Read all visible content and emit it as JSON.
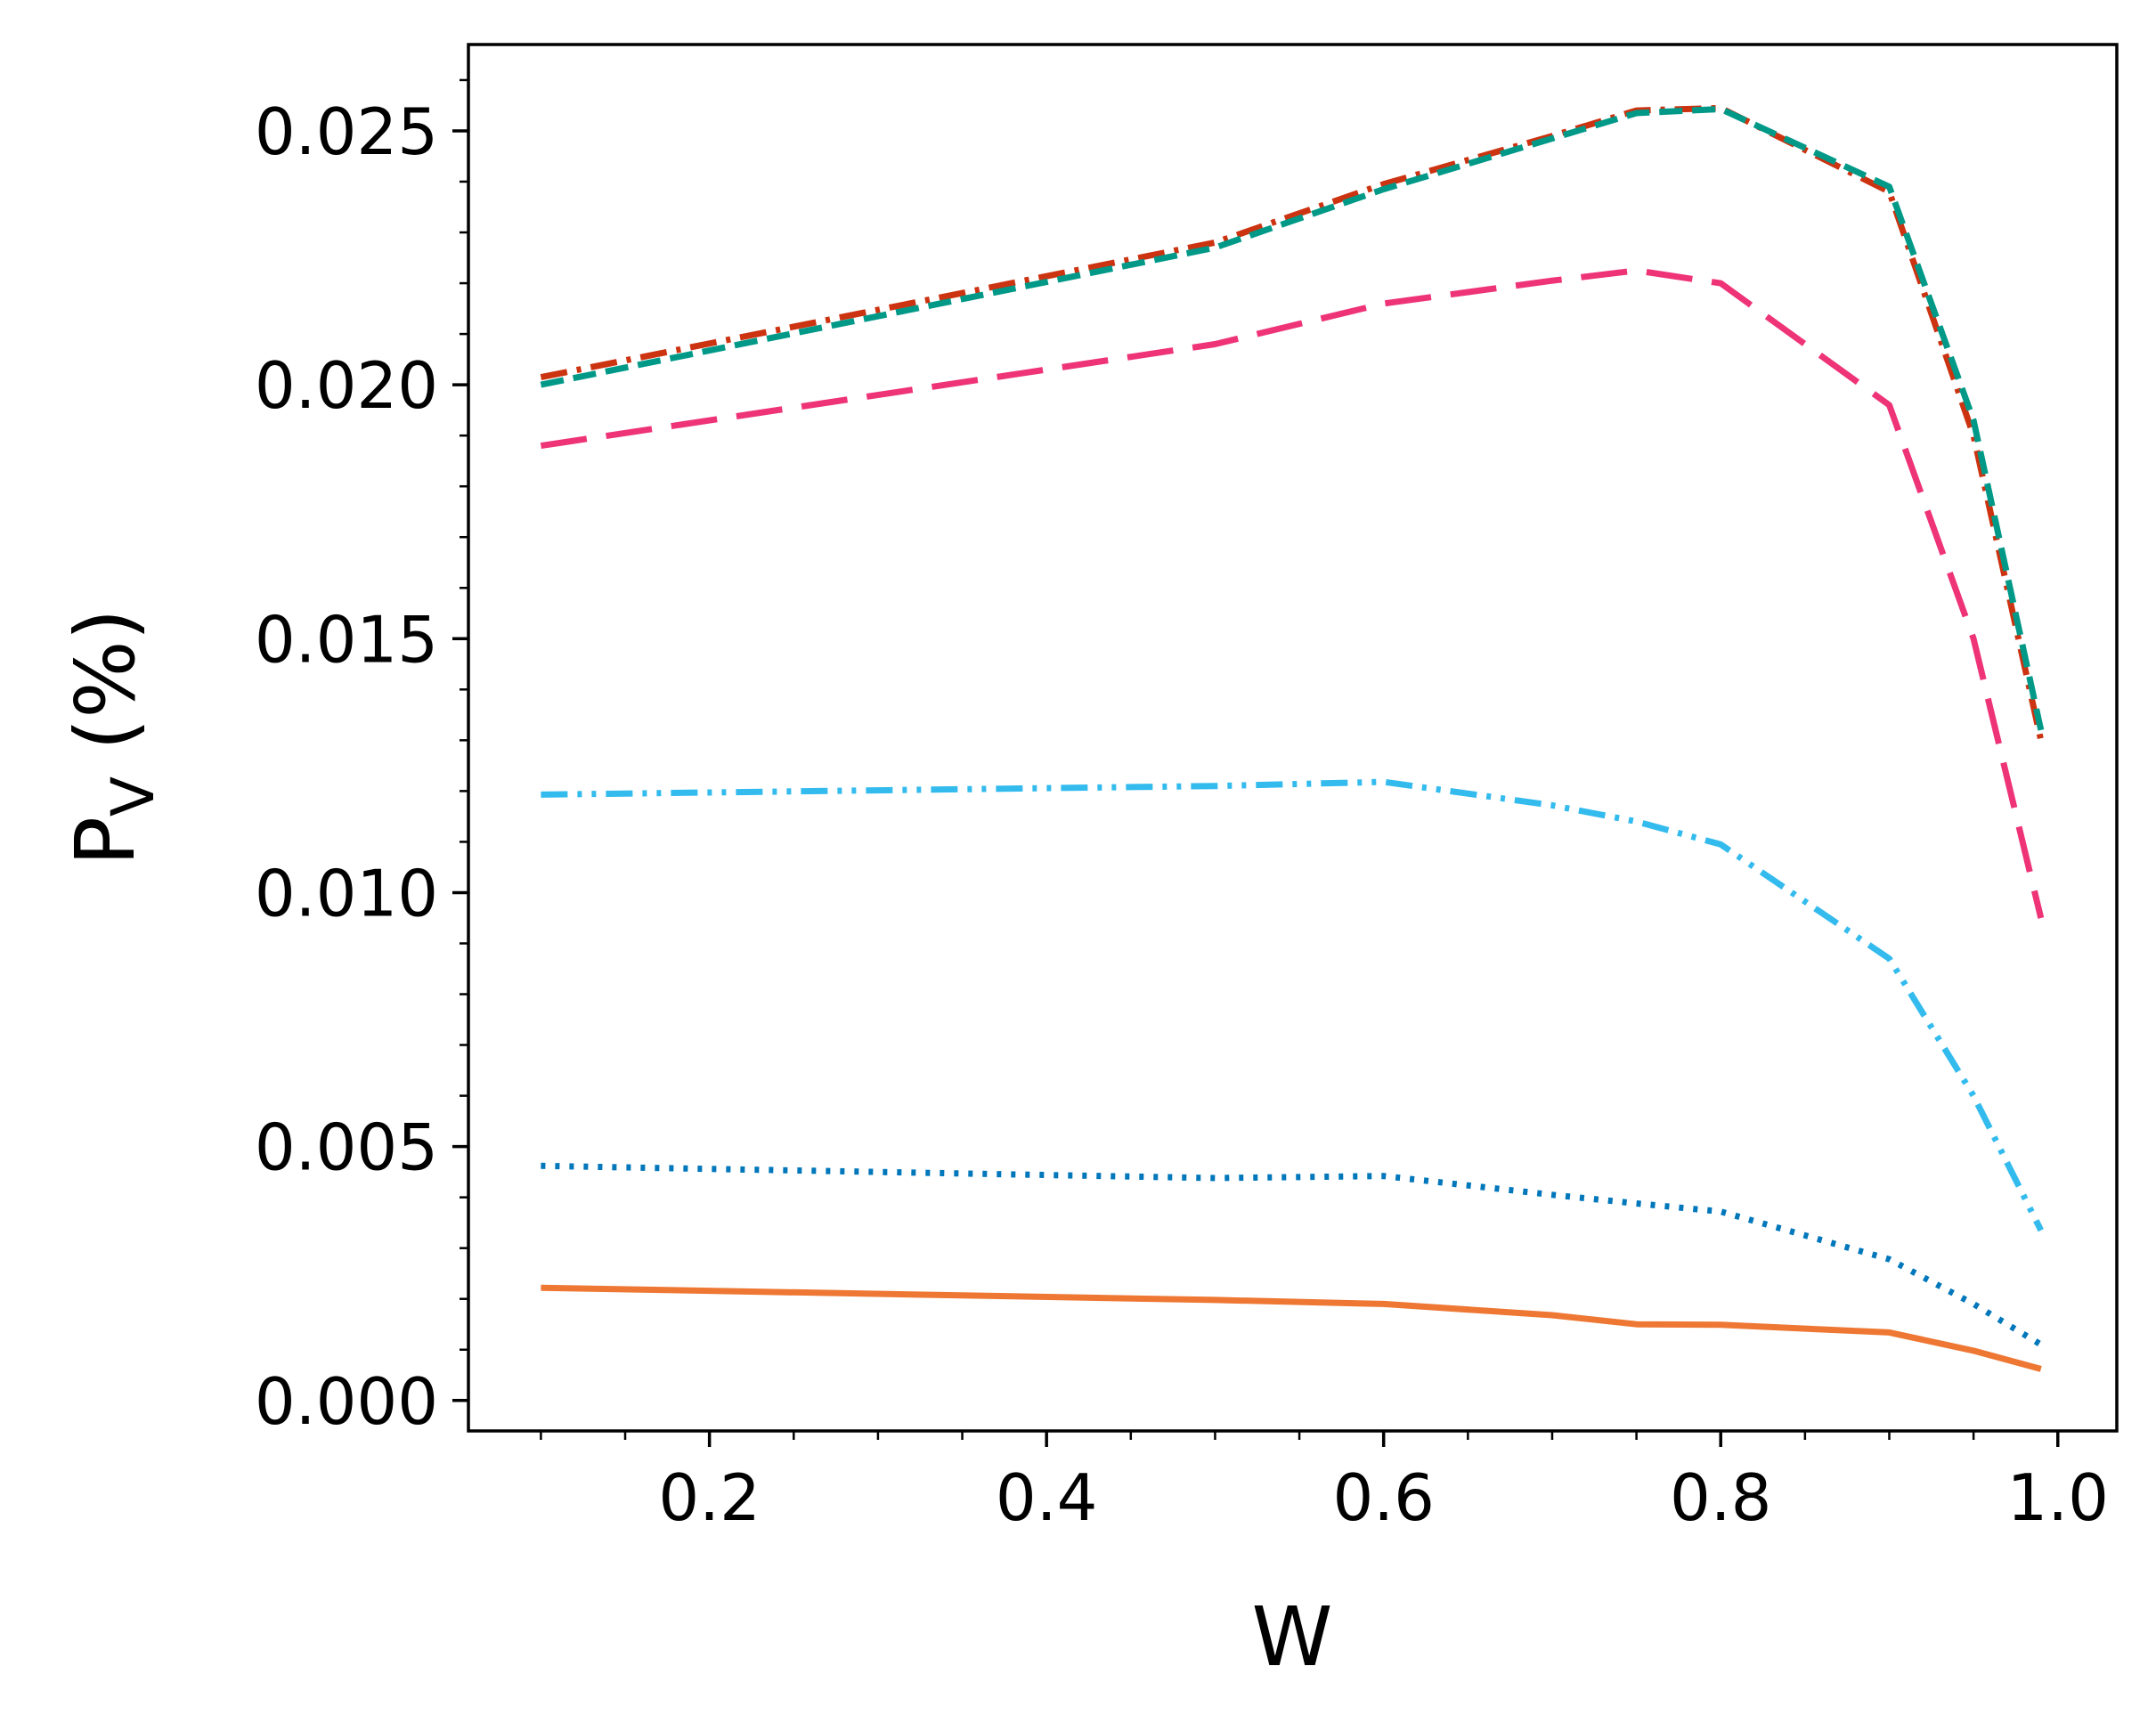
{
  "chart_data": {
    "type": "line",
    "title": "",
    "xlabel": "W",
    "ylabel": {
      "main": "P",
      "subscript": "V",
      "suffix": " (%)"
    },
    "xlim": [
      0.057,
      1.035
    ],
    "ylim": [
      -0.0006,
      0.0267
    ],
    "x_ticks": [
      0.2,
      0.4,
      0.6,
      0.8,
      1.0
    ],
    "x_tick_labels": [
      "0.2",
      "0.4",
      "0.6",
      "0.8",
      "1.0"
    ],
    "x_minor_ticks": [
      0.1,
      0.15,
      0.25,
      0.3,
      0.35,
      0.45,
      0.5,
      0.55,
      0.65,
      0.7,
      0.75,
      0.85,
      0.9,
      0.95
    ],
    "y_ticks": [
      0.0,
      0.005,
      0.01,
      0.015,
      0.02,
      0.025
    ],
    "y_tick_labels": [
      "0.000",
      "0.005",
      "0.010",
      "0.015",
      "0.020",
      "0.025"
    ],
    "y_minor_ticks": [
      0.001,
      0.002,
      0.003,
      0.004,
      0.006,
      0.007,
      0.008,
      0.009,
      0.011,
      0.012,
      0.013,
      0.014,
      0.016,
      0.017,
      0.018,
      0.019,
      0.021,
      0.022,
      0.023,
      0.024,
      0.026
    ],
    "grid": false,
    "legend": "none",
    "x": [
      0.1,
      0.5,
      0.6,
      0.7,
      0.75,
      0.8,
      0.9,
      0.95,
      0.99
    ],
    "series": [
      {
        "name": "solid orange",
        "color": "#EE7733",
        "dash": "solid",
        "values": [
          0.00222,
          0.00198,
          0.0019,
          0.00168,
          0.0015,
          0.00149,
          0.00134,
          0.00098,
          0.00062
        ]
      },
      {
        "name": "dotted blue",
        "color": "#0077BB",
        "dash": "dotted",
        "values": [
          0.00462,
          0.00438,
          0.00442,
          0.00405,
          0.00388,
          0.00372,
          0.00278,
          0.0019,
          0.0011
        ]
      },
      {
        "name": "dash-dot-dot cyan",
        "color": "#33BBEE",
        "dash": "dashdotdot",
        "values": [
          0.01193,
          0.0121,
          0.01218,
          0.01172,
          0.0114,
          0.01095,
          0.0087,
          0.006,
          0.00335
        ]
      },
      {
        "name": "long-dash magenta",
        "color": "#EE3377",
        "dash": "longdash",
        "values": [
          0.0188,
          0.0208,
          0.0216,
          0.02205,
          0.02225,
          0.022,
          0.0196,
          0.015,
          0.0095
        ]
      },
      {
        "name": "dash-dot red",
        "color": "#CC3311",
        "dash": "dashdot",
        "values": [
          0.02015,
          0.0228,
          0.02395,
          0.0249,
          0.0254,
          0.02545,
          0.0238,
          0.019,
          0.013
        ]
      },
      {
        "name": "dashed teal",
        "color": "#009988",
        "dash": "dashed",
        "values": [
          0.02,
          0.0227,
          0.02385,
          0.02485,
          0.02535,
          0.02543,
          0.0239,
          0.0193,
          0.0132
        ]
      }
    ]
  }
}
